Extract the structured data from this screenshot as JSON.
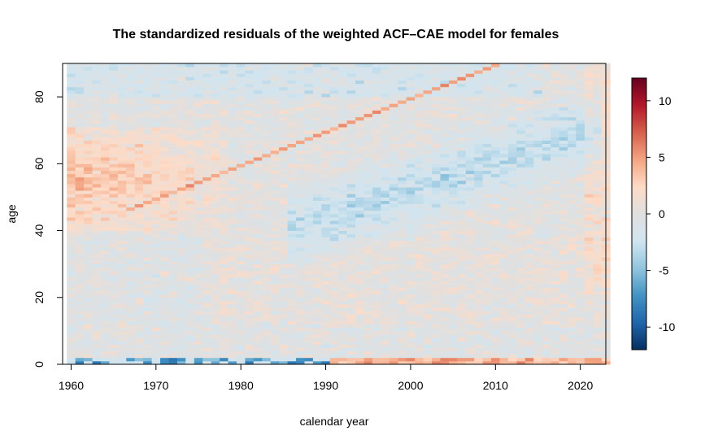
{
  "chart_data": {
    "type": "heatmap",
    "title": "The standardized residuals of the weighted ACF–CAE model for females",
    "xlabel": "calendar year",
    "ylabel": "age",
    "x_range": [
      1959,
      2022
    ],
    "y_range": [
      0,
      90
    ],
    "xlim": [
      1959,
      2023
    ],
    "ylim": [
      0,
      90
    ],
    "x_ticks": [
      1960,
      1970,
      1980,
      1990,
      2000,
      2010,
      2020
    ],
    "y_ticks": [
      0,
      20,
      40,
      60,
      80
    ],
    "colorbar": {
      "ticks": [
        10,
        5,
        0,
        -5,
        -10
      ],
      "range": [
        -12,
        12
      ],
      "colors": [
        "#67001f",
        "#b2182b",
        "#d6604d",
        "#f4a582",
        "#fddbc7",
        "#e0e0e0",
        "#d1e5f0",
        "#92c5de",
        "#4393c3",
        "#2166ac",
        "#053061"
      ]
    },
    "features": {
      "cohort_diagonal": {
        "from": [
          1966,
          46
        ],
        "to": [
          2009,
          89
        ],
        "residual": 5
      },
      "positive_region": {
        "years": [
          1959,
          1977
        ],
        "ages": [
          40,
          70
        ],
        "residual": 4
      },
      "negative_region": {
        "years": [
          1985,
          2015
        ],
        "ages": [
          38,
          68
        ],
        "residual": -3
      },
      "age_zero_row": {
        "early_residual": -8,
        "late_residual": 6
      }
    },
    "grid": false,
    "legend": "right"
  }
}
